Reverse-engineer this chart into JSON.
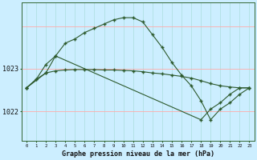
{
  "bg_color": "#cceeff",
  "plot_bg_color": "#cceeff",
  "line_color": "#2d5a2d",
  "vgrid_color": "#aadddd",
  "hgrid_color": "#ffaaaa",
  "xlabel": "Graphe pression niveau de la mer (hPa)",
  "ylim": [
    1021.3,
    1024.55
  ],
  "xlim": [
    -0.5,
    23.5
  ],
  "yticks": [
    1022,
    1023
  ],
  "xticks": [
    0,
    1,
    2,
    3,
    4,
    5,
    6,
    7,
    8,
    9,
    10,
    11,
    12,
    13,
    14,
    15,
    16,
    17,
    18,
    19,
    20,
    21,
    22,
    23
  ],
  "line1_x": [
    0,
    1,
    2,
    3,
    4,
    5,
    6,
    7,
    8,
    9,
    10,
    11,
    12,
    13,
    14,
    15,
    16,
    17,
    18,
    19,
    20,
    21,
    22,
    23
  ],
  "line1_y": [
    1022.55,
    1022.75,
    1023.1,
    1023.3,
    1023.6,
    1023.7,
    1023.85,
    1023.95,
    1024.05,
    1024.15,
    1024.2,
    1024.2,
    1024.1,
    1023.8,
    1023.5,
    1023.15,
    1022.85,
    1022.6,
    1022.25,
    1021.8,
    1022.05,
    1022.2,
    1022.4,
    1022.55
  ],
  "line2_x": [
    0,
    1,
    2,
    3,
    4,
    5,
    6,
    7,
    8,
    9,
    10,
    11,
    12,
    13,
    14,
    15,
    16,
    17,
    18,
    19,
    20,
    21,
    22,
    23
  ],
  "line2_y": [
    1022.55,
    1022.75,
    1022.9,
    1022.95,
    1022.97,
    1022.98,
    1022.98,
    1022.98,
    1022.97,
    1022.97,
    1022.96,
    1022.95,
    1022.93,
    1022.9,
    1022.88,
    1022.85,
    1022.82,
    1022.78,
    1022.72,
    1022.65,
    1022.6,
    1022.57,
    1022.55,
    1022.55
  ],
  "line3_x": [
    0,
    2,
    3,
    18,
    19,
    20,
    21,
    22,
    23
  ],
  "line3_y": [
    1022.55,
    1022.9,
    1023.3,
    1021.8,
    1022.05,
    1022.2,
    1022.4,
    1022.55,
    1022.55
  ]
}
